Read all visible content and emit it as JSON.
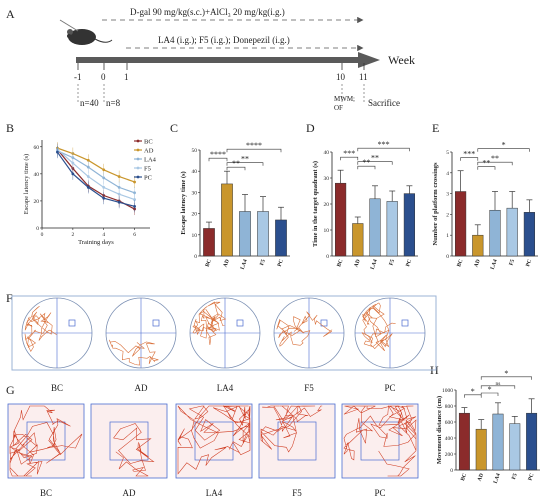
{
  "panel_letters": [
    "A",
    "B",
    "C",
    "D",
    "E",
    "F",
    "G",
    "H"
  ],
  "timeline": {
    "dgal_label": "D-gal 90 mg/kg(s.c.)+AlCl₃ 20 mg/kg(i.g.)",
    "treat_label": "LA4 (i.g.); F5 (i.g.); Donepezil (i.g.)",
    "week_label": "Week",
    "ticks": [
      "-1",
      "0",
      "1",
      "10",
      "11"
    ],
    "n40": "n=40",
    "n8": "n=8",
    "mwm": "MWM;",
    "of": "OF",
    "sacrifice": "Sacrifice"
  },
  "groups": [
    "BC",
    "AD",
    "LA4",
    "F5",
    "PC"
  ],
  "colors": {
    "BC": "#8B2B2B",
    "AD": "#C9962C",
    "LA4": "#8FB4D6",
    "F5": "#A9C8E4",
    "PC": "#2B4F8E"
  },
  "chart_data": [
    {
      "id": "B",
      "type": "line",
      "ylabel": "Escape latency time (s)",
      "xlabel": "Training days",
      "x": [
        1,
        2,
        3,
        4,
        5,
        6
      ],
      "xticks": [
        "0",
        "2",
        "4",
        "6"
      ],
      "yticks": [
        "0",
        "20",
        "40",
        "60"
      ],
      "xlim": [
        0,
        7
      ],
      "ylim": [
        0,
        65
      ],
      "series": [
        {
          "name": "BC",
          "values": [
            58,
            44,
            31,
            24,
            20,
            14
          ]
        },
        {
          "name": "AD",
          "values": [
            59,
            55,
            50,
            43,
            38,
            34
          ]
        },
        {
          "name": "LA4",
          "values": [
            57,
            52,
            45,
            37,
            30,
            26
          ]
        },
        {
          "name": "F5",
          "values": [
            58,
            48,
            38,
            30,
            25,
            21
          ]
        },
        {
          "name": "PC",
          "values": [
            56,
            40,
            30,
            22,
            19,
            16
          ]
        }
      ]
    },
    {
      "id": "C",
      "type": "bar",
      "ylabel": "Escape latency time (s)",
      "categories": [
        "BC",
        "AD",
        "LA4",
        "F5",
        "PC"
      ],
      "values": [
        13,
        34,
        21,
        21,
        17
      ],
      "errors": [
        3,
        6,
        8,
        7,
        6
      ],
      "ylim": [
        0,
        50
      ],
      "yticks": [
        "0",
        "10",
        "20",
        "30",
        "40",
        "50"
      ],
      "sig": [
        {
          "a": 0,
          "b": 1,
          "label": "****"
        },
        {
          "a": 1,
          "b": 2,
          "label": "**"
        },
        {
          "a": 1,
          "b": 3,
          "label": "**"
        },
        {
          "a": 1,
          "b": 4,
          "label": "****"
        }
      ]
    },
    {
      "id": "D",
      "type": "bar",
      "ylabel": "Time in the target quadrant (s)",
      "categories": [
        "BC",
        "AD",
        "LA4",
        "F5",
        "PC"
      ],
      "values": [
        28,
        12.5,
        22,
        21,
        24
      ],
      "errors": [
        5,
        2.5,
        5,
        4,
        3
      ],
      "ylim": [
        0,
        40
      ],
      "yticks": [
        "0",
        "10",
        "20",
        "30",
        "40"
      ],
      "sig": [
        {
          "a": 0,
          "b": 1,
          "label": "***"
        },
        {
          "a": 1,
          "b": 2,
          "label": "**"
        },
        {
          "a": 1,
          "b": 3,
          "label": "**"
        },
        {
          "a": 1,
          "b": 4,
          "label": "***"
        }
      ]
    },
    {
      "id": "E",
      "type": "bar",
      "ylabel": "Number of platform crossings",
      "categories": [
        "BC",
        "AD",
        "LA4",
        "F5",
        "PC"
      ],
      "values": [
        3.1,
        1.0,
        2.2,
        2.3,
        2.1
      ],
      "errors": [
        1.0,
        0.5,
        0.9,
        0.8,
        0.6
      ],
      "ylim": [
        0,
        5
      ],
      "yticks": [
        "0",
        "1",
        "2",
        "3",
        "4",
        "5"
      ],
      "sig": [
        {
          "a": 0,
          "b": 1,
          "label": "***"
        },
        {
          "a": 1,
          "b": 2,
          "label": "**"
        },
        {
          "a": 1,
          "b": 3,
          "label": "**"
        },
        {
          "a": 1,
          "b": 4,
          "label": "*"
        }
      ]
    },
    {
      "id": "H",
      "type": "bar",
      "ylabel": "Movement distance (cm)",
      "categories": [
        "BC",
        "AD",
        "LA4",
        "F5",
        "PC"
      ],
      "values": [
        710,
        510,
        700,
        580,
        710
      ],
      "errors": [
        70,
        120,
        140,
        90,
        180
      ],
      "ylim": [
        0,
        1000
      ],
      "yticks": [
        "0",
        "200",
        "400",
        "600",
        "800",
        "1000"
      ],
      "sig": [
        {
          "a": 0,
          "b": 1,
          "label": "*"
        },
        {
          "a": 1,
          "b": 2,
          "label": "*"
        },
        {
          "a": 1,
          "b": 3,
          "label": "ns"
        },
        {
          "a": 1,
          "b": 4,
          "label": "*"
        }
      ]
    }
  ],
  "track_labels": [
    "BC",
    "AD",
    "LA4",
    "F5",
    "PC"
  ]
}
